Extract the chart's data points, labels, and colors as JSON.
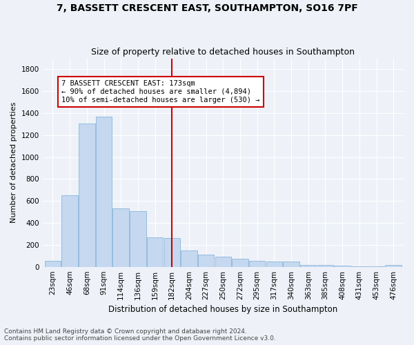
{
  "title": "7, BASSETT CRESCENT EAST, SOUTHAMPTON, SO16 7PF",
  "subtitle": "Size of property relative to detached houses in Southampton",
  "xlabel": "Distribution of detached houses by size in Southampton",
  "ylabel": "Number of detached properties",
  "categories": [
    "23sqm",
    "46sqm",
    "68sqm",
    "91sqm",
    "114sqm",
    "136sqm",
    "159sqm",
    "182sqm",
    "204sqm",
    "227sqm",
    "250sqm",
    "272sqm",
    "295sqm",
    "317sqm",
    "340sqm",
    "363sqm",
    "385sqm",
    "408sqm",
    "431sqm",
    "453sqm",
    "476sqm"
  ],
  "values": [
    55,
    650,
    1305,
    1370,
    530,
    510,
    270,
    265,
    150,
    110,
    90,
    75,
    55,
    50,
    50,
    20,
    20,
    8,
    3,
    3,
    20
  ],
  "bar_color": "#c5d8f0",
  "bar_edge_color": "#7aadd4",
  "vline_x_index": 7,
  "vline_color": "#cc0000",
  "annotation_text": "7 BASSETT CRESCENT EAST: 173sqm\n← 90% of detached houses are smaller (4,894)\n10% of semi-detached houses are larger (530) →",
  "annotation_box_color": "#ffffff",
  "annotation_box_edge_color": "#cc0000",
  "footnote1": "Contains HM Land Registry data © Crown copyright and database right 2024.",
  "footnote2": "Contains public sector information licensed under the Open Government Licence v3.0.",
  "background_color": "#eef2f8",
  "grid_color": "#ffffff",
  "ylim": [
    0,
    1900
  ],
  "yticks": [
    0,
    200,
    400,
    600,
    800,
    1000,
    1200,
    1400,
    1600,
    1800
  ],
  "title_fontsize": 10,
  "subtitle_fontsize": 9,
  "xlabel_fontsize": 8.5,
  "ylabel_fontsize": 8,
  "tick_fontsize": 7.5,
  "annotation_fontsize": 7.5,
  "footnote_fontsize": 6.5
}
